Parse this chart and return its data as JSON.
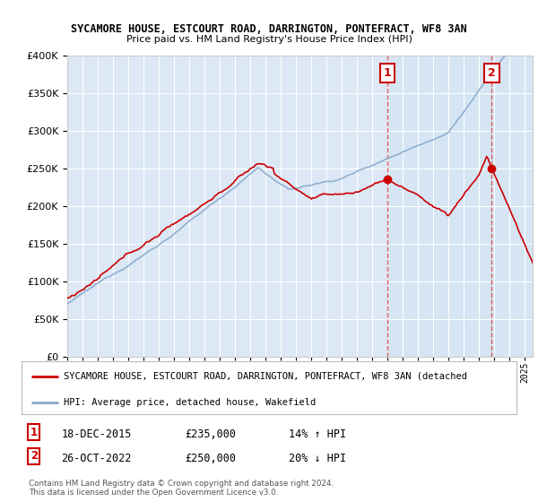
{
  "title1": "SYCAMORE HOUSE, ESTCOURT ROAD, DARRINGTON, PONTEFRACT, WF8 3AN",
  "title2": "Price paid vs. HM Land Registry's House Price Index (HPI)",
  "legend_red": "SYCAMORE HOUSE, ESTCOURT ROAD, DARRINGTON, PONTEFRACT, WF8 3AN (detached",
  "legend_blue": "HPI: Average price, detached house, Wakefield",
  "footnote": "Contains HM Land Registry data © Crown copyright and database right 2024.\nThis data is licensed under the Open Government Licence v3.0.",
  "sale1_label": "1",
  "sale1_date": "18-DEC-2015",
  "sale1_price": "£235,000",
  "sale1_hpi": "14% ↑ HPI",
  "sale1_year": 2015.96,
  "sale1_price_val": 235000,
  "sale2_label": "2",
  "sale2_date": "26-OCT-2022",
  "sale2_price": "£250,000",
  "sale2_hpi": "20% ↓ HPI",
  "sale2_year": 2022.82,
  "sale2_price_val": 250000,
  "ylim": [
    0,
    400000
  ],
  "xlim_start": 1995,
  "xlim_end": 2025.5,
  "bg_color_left": "#dce8f5",
  "bg_color_right": "#e8f2fc",
  "grid_color": "#ffffff",
  "red_color": "#cc0000",
  "blue_color": "#88aacc",
  "vline_color": "#dd4444",
  "shade_color": "#d0e4f4"
}
